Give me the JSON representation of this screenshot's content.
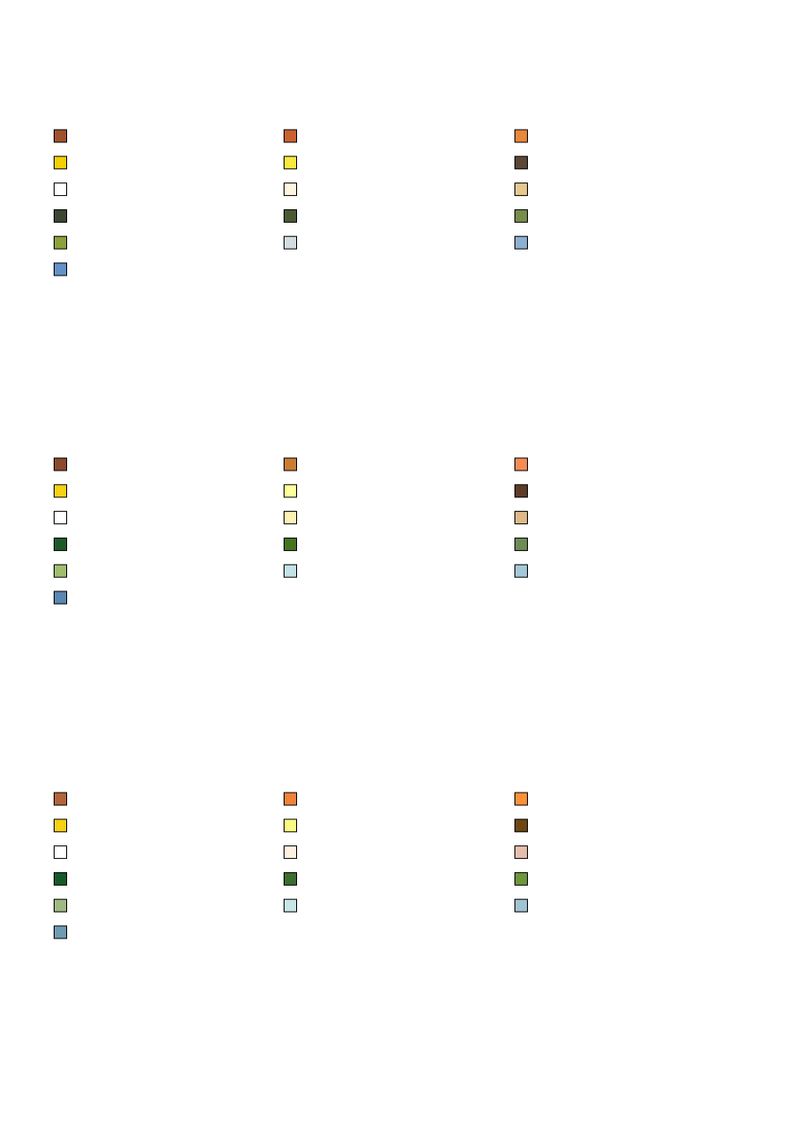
{
  "palettes": [
    {
      "colors": [
        "#a0522d",
        "#c9622f",
        "#e8883a",
        "#f5d000",
        "#f8e840",
        "#5c4636",
        "#ffffff",
        "#fff5dc",
        "#e6c88c",
        "#3c4632",
        "#4b5a32",
        "#788c4b",
        "#8ca03c",
        "#d2dce1",
        "#8cafd2",
        "#6491c8"
      ]
    },
    {
      "colors": [
        "#8b4a2b",
        "#c87d32",
        "#f58c55",
        "#f5d214",
        "#ffff9b",
        "#5f3c28",
        "#ffffff",
        "#fff0b4",
        "#dcb987",
        "#1e5a28",
        "#46731e",
        "#6e8c55",
        "#a0be6e",
        "#c3e1e6",
        "#a5c8d7",
        "#5a87b4"
      ]
    },
    {
      "colors": [
        "#b4643c",
        "#f0823c",
        "#ff9137",
        "#f5d214",
        "#fafa82",
        "#6e4614",
        "#ffffff",
        "#fff0e1",
        "#e6bead",
        "#145a28",
        "#3c6e2d",
        "#6e963c",
        "#a0b982",
        "#c8e6e6",
        "#a0c3d2",
        "#6e9bb4"
      ]
    }
  ]
}
